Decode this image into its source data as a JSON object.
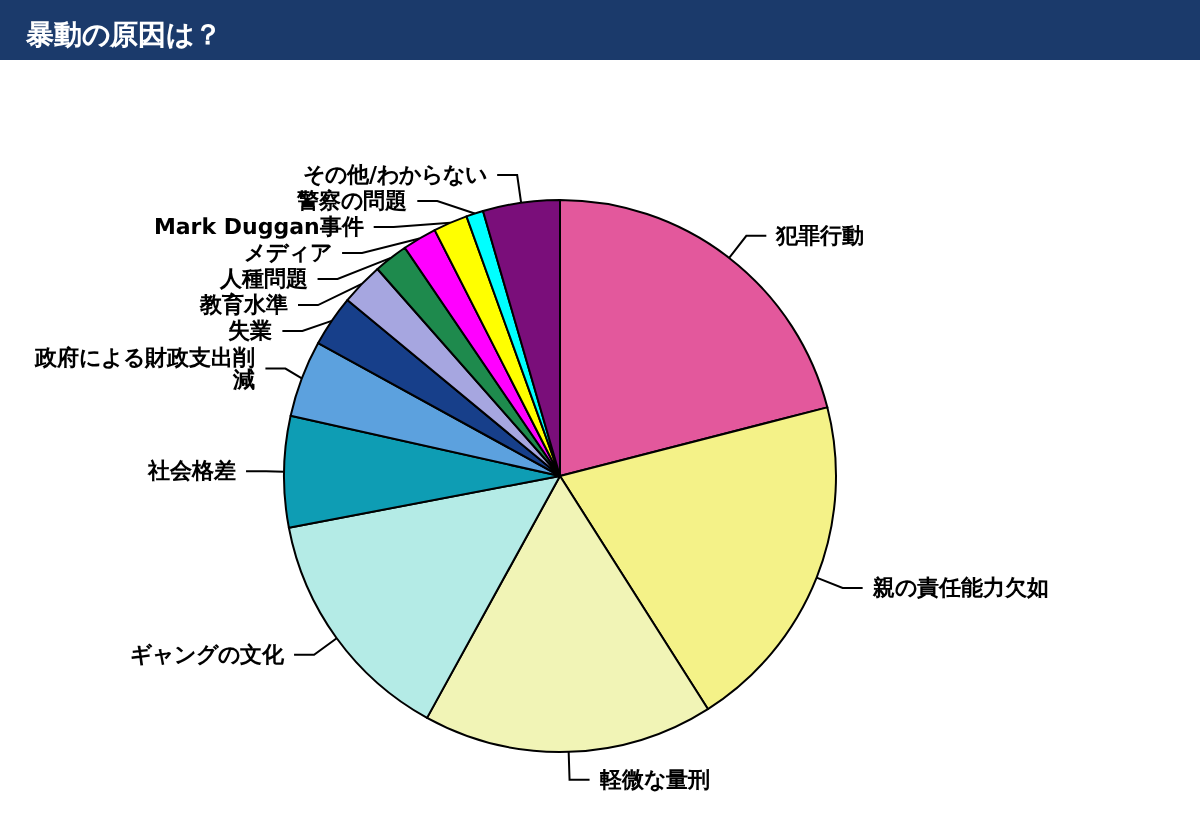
{
  "chart_data": {
    "type": "pie",
    "title": "暴動の原因は？",
    "categories": [
      "犯罪行動",
      "親の責任能力欠如",
      "軽微な量刑",
      "ギャングの文化",
      "社会格差",
      "政府による財政支出削減",
      "失業",
      "教育水準",
      "人種問題",
      "メディア",
      "Mark Duggan事件",
      "警察の問題",
      "その他/わからない"
    ],
    "values": [
      21,
      20,
      17,
      14,
      6.5,
      4.5,
      3,
      2.5,
      2,
      2,
      2,
      1,
      4.5
    ],
    "colors": [
      "#e3589c",
      "#f4f288",
      "#f1f4b6",
      "#b4ebe6",
      "#0e9db4",
      "#5ca1de",
      "#173f8a",
      "#a6a6e0",
      "#1e8a4d",
      "#ff00ff",
      "#ffff00",
      "#00ffff",
      "#7a0e7a"
    ],
    "legend": false
  }
}
